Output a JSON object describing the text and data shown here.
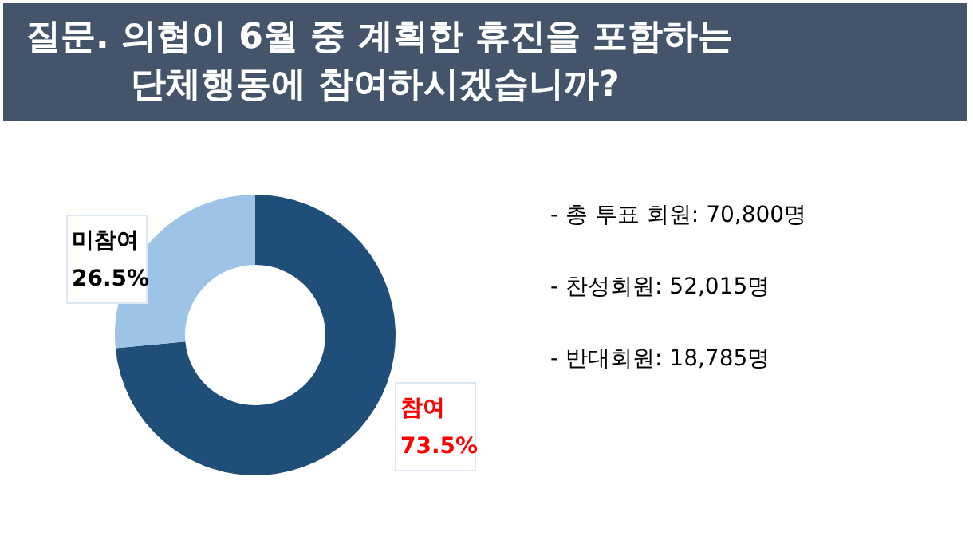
{
  "chart_data": {
    "type": "donut",
    "title": "질문. 의협이 6월 중 계획한 휴진을 포함하는\n단체행동에 참여하시겠습니까?",
    "categories": [
      "참여",
      "미참여"
    ],
    "values": [
      73.5,
      26.5
    ],
    "colors": [
      "#1f4e79",
      "#9dc3e6"
    ],
    "value_labels": [
      "73.5%",
      "26.5%"
    ],
    "annotations": [
      "- 총 투표 회원: 70,800명",
      "- 찬성회원: 52,015명",
      "- 반대회원: 18,785명"
    ]
  }
}
